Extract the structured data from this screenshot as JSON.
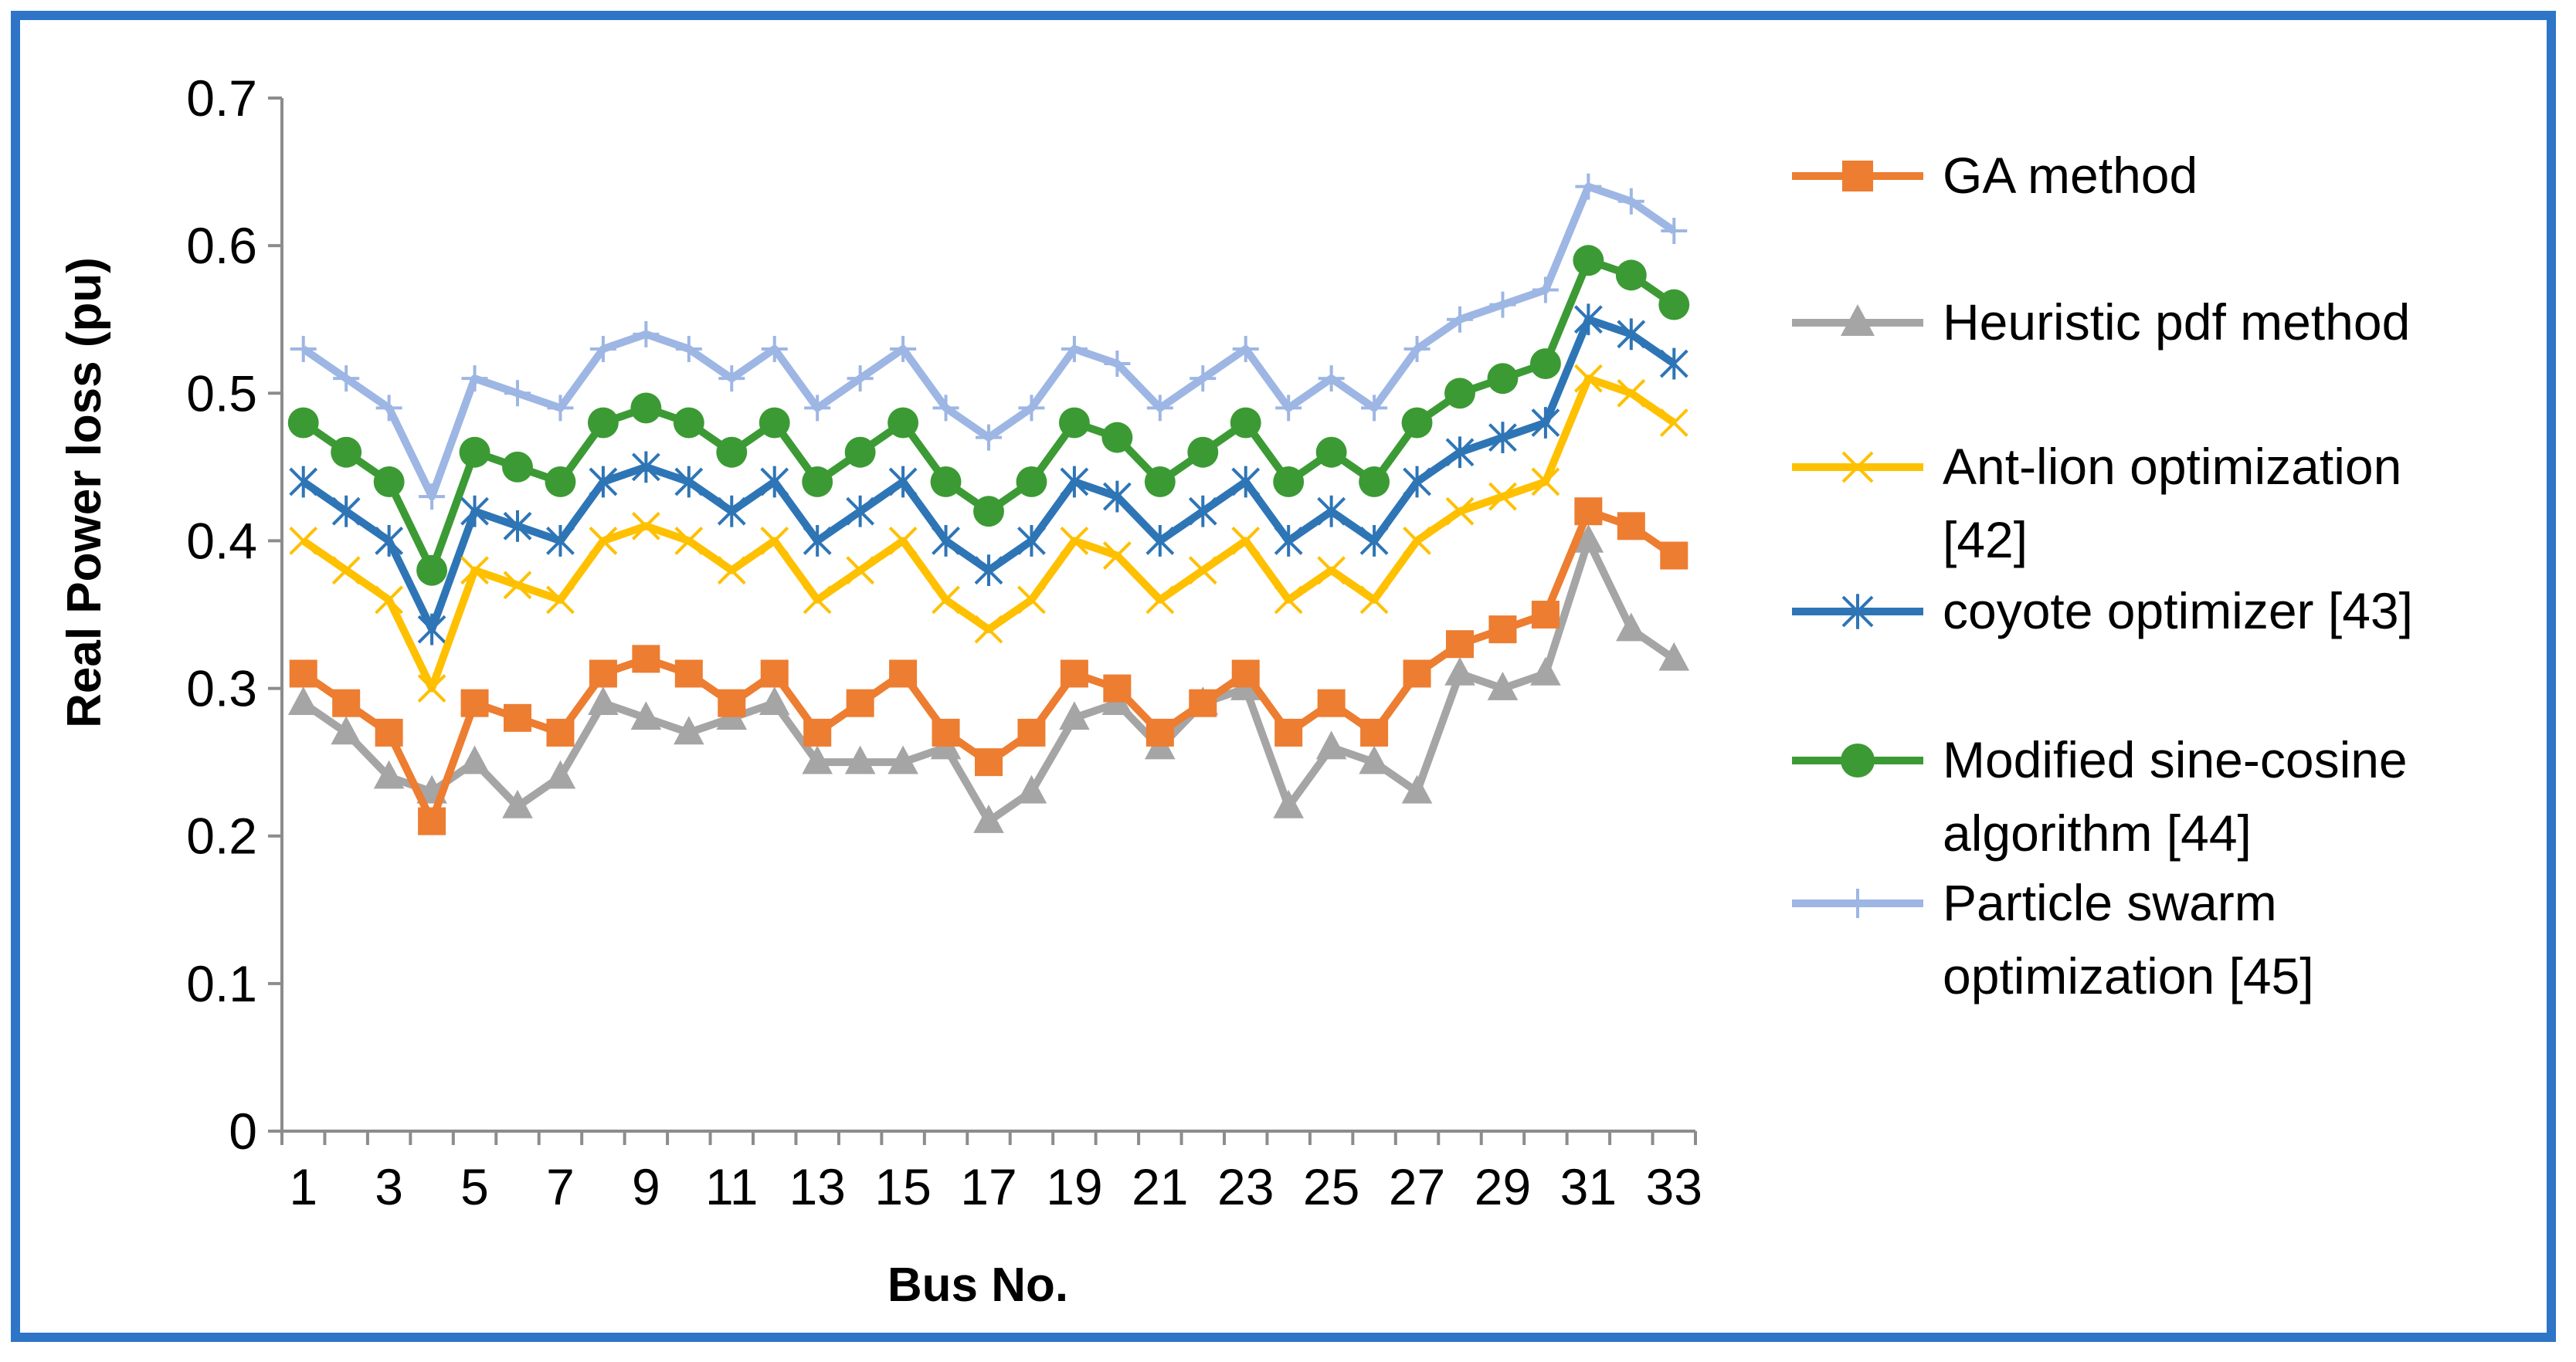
{
  "chart_data": {
    "type": "line",
    "title": "",
    "xlabel": "Bus No.",
    "ylabel": "Real Power loss (pu)",
    "ylim": [
      0,
      0.7
    ],
    "yticks": [
      0,
      0.1,
      0.2,
      0.3,
      0.4,
      0.5,
      0.6,
      0.7
    ],
    "ytick_labels": [
      "0",
      "0.1",
      "0.2",
      "0.3",
      "0.4",
      "0.5",
      "0.6",
      "0.7"
    ],
    "x": [
      1,
      2,
      3,
      4,
      5,
      6,
      7,
      8,
      9,
      10,
      11,
      12,
      13,
      14,
      15,
      16,
      17,
      18,
      19,
      20,
      21,
      22,
      23,
      24,
      25,
      26,
      27,
      28,
      29,
      30,
      31,
      32,
      33
    ],
    "xtick_labels": [
      "1",
      "3",
      "5",
      "7",
      "9",
      "11",
      "13",
      "15",
      "17",
      "19",
      "21",
      "23",
      "25",
      "27",
      "29",
      "31",
      "33"
    ],
    "grid": false,
    "legend_position": "right",
    "series": [
      {
        "name": "GA method",
        "legend_lines": [
          "GA method"
        ],
        "color": "#ed7d31",
        "marker": "square",
        "values": [
          0.31,
          0.29,
          0.27,
          0.21,
          0.29,
          0.28,
          0.27,
          0.31,
          0.32,
          0.31,
          0.29,
          0.31,
          0.27,
          0.29,
          0.31,
          0.27,
          0.25,
          0.27,
          0.31,
          0.3,
          0.27,
          0.29,
          0.31,
          0.27,
          0.29,
          0.27,
          0.31,
          0.33,
          0.34,
          0.35,
          0.42,
          0.41,
          0.39
        ]
      },
      {
        "name": "Heuristic pdf method",
        "legend_lines": [
          "Heuristic pdf method"
        ],
        "color": "#a5a5a5",
        "marker": "triangle",
        "values": [
          0.29,
          0.27,
          0.24,
          0.23,
          0.25,
          0.22,
          0.24,
          0.29,
          0.28,
          0.27,
          0.28,
          0.29,
          0.25,
          0.25,
          0.25,
          0.26,
          0.21,
          0.23,
          0.28,
          0.29,
          0.26,
          0.29,
          0.3,
          0.22,
          0.26,
          0.25,
          0.23,
          0.31,
          0.3,
          0.31,
          0.4,
          0.34,
          0.32
        ]
      },
      {
        "name": "Ant-lion optimization [42]",
        "legend_lines": [
          "Ant-lion optimization",
          "[42]"
        ],
        "color": "#ffc000",
        "marker": "x",
        "values": [
          0.4,
          0.38,
          0.36,
          0.3,
          0.38,
          0.37,
          0.36,
          0.4,
          0.41,
          0.4,
          0.38,
          0.4,
          0.36,
          0.38,
          0.4,
          0.36,
          0.34,
          0.36,
          0.4,
          0.39,
          0.36,
          0.38,
          0.4,
          0.36,
          0.38,
          0.36,
          0.4,
          0.42,
          0.43,
          0.44,
          0.51,
          0.5,
          0.48
        ]
      },
      {
        "name": "coyote optimizer [43]",
        "legend_lines": [
          "coyote optimizer [43]"
        ],
        "color": "#2e75b6",
        "marker": "asterisk",
        "values": [
          0.44,
          0.42,
          0.4,
          0.34,
          0.42,
          0.41,
          0.4,
          0.44,
          0.45,
          0.44,
          0.42,
          0.44,
          0.4,
          0.42,
          0.44,
          0.4,
          0.38,
          0.4,
          0.44,
          0.43,
          0.4,
          0.42,
          0.44,
          0.4,
          0.42,
          0.4,
          0.44,
          0.46,
          0.47,
          0.48,
          0.55,
          0.54,
          0.52
        ]
      },
      {
        "name": "Modified sine-cosine algorithm [44]",
        "legend_lines": [
          "Modified sine-cosine",
          "algorithm [44]"
        ],
        "color": "#3c9a34",
        "marker": "circle",
        "values": [
          0.48,
          0.46,
          0.44,
          0.38,
          0.46,
          0.45,
          0.44,
          0.48,
          0.49,
          0.48,
          0.46,
          0.48,
          0.44,
          0.46,
          0.48,
          0.44,
          0.42,
          0.44,
          0.48,
          0.47,
          0.44,
          0.46,
          0.48,
          0.44,
          0.46,
          0.44,
          0.48,
          0.5,
          0.51,
          0.52,
          0.59,
          0.58,
          0.56
        ]
      },
      {
        "name": "Particle swarm optimization [45]",
        "legend_lines": [
          "Particle swarm",
          "optimization [45]"
        ],
        "color": "#9db6e4",
        "marker": "plus",
        "values": [
          0.53,
          0.51,
          0.49,
          0.43,
          0.51,
          0.5,
          0.49,
          0.53,
          0.54,
          0.53,
          0.51,
          0.53,
          0.49,
          0.51,
          0.53,
          0.49,
          0.47,
          0.49,
          0.53,
          0.52,
          0.49,
          0.51,
          0.53,
          0.49,
          0.51,
          0.49,
          0.53,
          0.55,
          0.56,
          0.57,
          0.64,
          0.63,
          0.61
        ]
      }
    ]
  }
}
